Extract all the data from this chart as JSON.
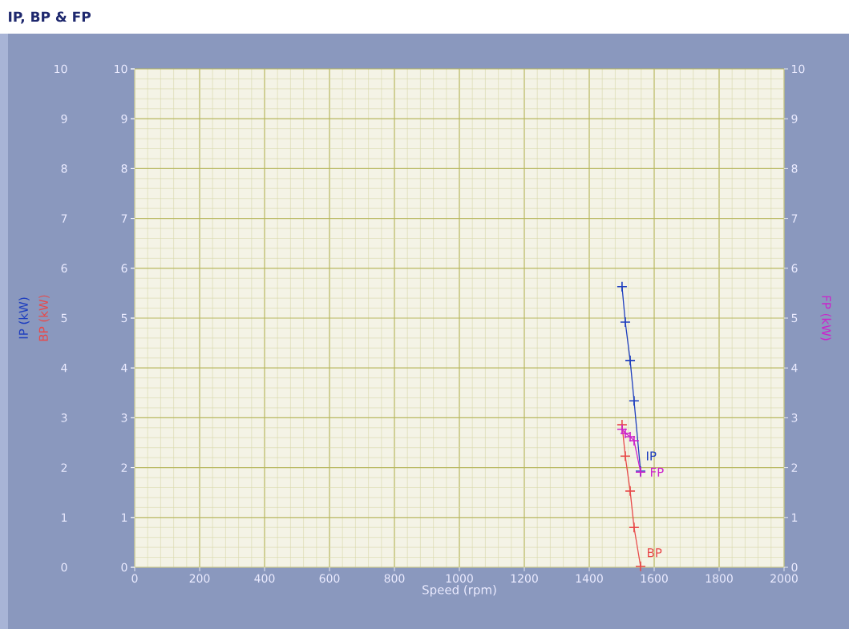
{
  "chart_data": {
    "type": "line",
    "title": "IP, BP & FP",
    "xlabel": "Speed (rpm)",
    "ylabel": "IP (kW)",
    "y2label": "FP (kW)",
    "y3label": "BP (kW)",
    "x": [
      1501,
      1511,
      1526,
      1538,
      1558
    ],
    "series": [
      {
        "name": "IP",
        "color": "#1f3fbf",
        "axis": "y",
        "values": [
          5.63,
          4.92,
          4.15,
          3.34,
          1.93
        ]
      },
      {
        "name": "BP",
        "color": "#e84a4a",
        "axis": "y3",
        "values": [
          2.86,
          2.23,
          1.53,
          0.8,
          0.02
        ]
      },
      {
        "name": "FP",
        "color": "#cc22cc",
        "axis": "y2",
        "values": [
          2.77,
          2.69,
          2.62,
          2.54,
          1.91
        ]
      }
    ],
    "xlim": [
      0,
      2000
    ],
    "xticks": [
      0,
      {
        "value": 40,
        "label": null
      },
      {
        "value": 80,
        "label": null
      },
      {
        "value": 120,
        "label": null
      },
      {
        "value": 160,
        "label": null
      },
      200,
      {
        "value": 240,
        "label": null
      },
      {
        "value": 280,
        "label": null
      },
      {
        "value": 320,
        "label": null
      },
      {
        "value": 360,
        "label": null
      },
      400,
      {
        "value": 440,
        "label": null
      },
      {
        "value": 480,
        "label": null
      },
      {
        "value": 520,
        "label": null
      },
      {
        "value": 560,
        "label": null
      },
      600,
      {
        "value": 640,
        "label": null
      },
      {
        "value": 680,
        "label": null
      },
      {
        "value": 720,
        "label": null
      },
      {
        "value": 760,
        "label": null
      },
      800,
      {
        "value": 840,
        "label": null
      },
      {
        "value": 880,
        "label": null
      },
      {
        "value": 920,
        "label": null
      },
      {
        "value": 960,
        "label": null
      },
      1000,
      {
        "value": 1040,
        "label": null
      },
      {
        "value": 1080,
        "label": null
      },
      {
        "value": 1120,
        "label": null
      },
      {
        "value": 1160,
        "label": null
      },
      1200,
      {
        "value": 1240,
        "label": null
      },
      {
        "value": 1280,
        "label": null
      },
      {
        "value": 1320,
        "label": null
      },
      {
        "value": 1360,
        "label": null
      },
      1400,
      {
        "value": 1440,
        "label": null
      },
      {
        "value": 1480,
        "label": null
      },
      {
        "value": 1520,
        "label": null
      },
      {
        "value": 1560,
        "label": null
      },
      1600,
      {
        "value": 1640,
        "label": null
      },
      {
        "value": 1680,
        "label": null
      },
      {
        "value": 1720,
        "label": null
      },
      {
        "value": 1760,
        "label": null
      },
      1800,
      {
        "value": 1840,
        "label": null
      },
      {
        "value": 1880,
        "label": null
      },
      {
        "value": 1920,
        "label": null
      },
      {
        "value": 1960,
        "label": null
      },
      2000
    ],
    "ylim": [
      0,
      10
    ],
    "yticks": [
      0,
      {
        "value": 0.2,
        "label": null
      },
      {
        "value": 0.4,
        "label": null
      },
      {
        "value": 0.6,
        "label": null
      },
      {
        "value": 0.8,
        "label": null
      },
      1,
      {
        "value": 1.2,
        "label": null
      },
      {
        "value": 1.4,
        "label": null
      },
      {
        "value": 1.6,
        "label": null
      },
      {
        "value": 1.8,
        "label": null
      },
      2,
      {
        "value": 2.2,
        "label": null
      },
      {
        "value": 2.4,
        "label": null
      },
      {
        "value": 2.6,
        "label": null
      },
      {
        "value": 2.8,
        "label": null
      },
      3,
      {
        "value": 3.2,
        "label": null
      },
      {
        "value": 3.4,
        "label": null
      },
      {
        "value": 3.6,
        "label": null
      },
      {
        "value": 3.8,
        "label": null
      },
      4,
      {
        "value": 4.2,
        "label": null
      },
      {
        "value": 4.4,
        "label": null
      },
      {
        "value": 4.6,
        "label": null
      },
      {
        "value": 4.8,
        "label": null
      },
      5,
      {
        "value": 5.2,
        "label": null
      },
      {
        "value": 5.4,
        "label": null
      },
      {
        "value": 5.6,
        "label": null
      },
      {
        "value": 5.8,
        "label": null
      },
      6,
      {
        "value": 6.2,
        "label": null
      },
      {
        "value": 6.4,
        "label": null
      },
      {
        "value": 6.6,
        "label": null
      },
      {
        "value": 6.8,
        "label": null
      },
      7,
      {
        "value": 7.2,
        "label": null
      },
      {
        "value": 7.4,
        "label": null
      },
      {
        "value": 7.6,
        "label": null
      },
      {
        "value": 7.8,
        "label": null
      },
      8,
      {
        "value": 8.2,
        "label": null
      },
      {
        "value": 8.4,
        "label": null
      },
      {
        "value": 8.6,
        "label": null
      },
      {
        "value": 8.8,
        "label": null
      },
      9,
      {
        "value": 9.2,
        "label": null
      },
      {
        "value": 9.4,
        "label": null
      },
      {
        "value": 9.6,
        "label": null
      },
      {
        "value": 9.8,
        "label": null
      },
      10
    ],
    "y2lim": [
      0,
      10
    ],
    "y2ticks": [
      0,
      1,
      2,
      3,
      4,
      5,
      6,
      7,
      8,
      9,
      10
    ],
    "y3lim": [
      0,
      10
    ],
    "y3ticks": [
      0,
      1,
      2,
      3,
      4,
      5,
      6,
      7,
      8,
      9,
      10
    ],
    "grid": true,
    "marker": "cross"
  }
}
